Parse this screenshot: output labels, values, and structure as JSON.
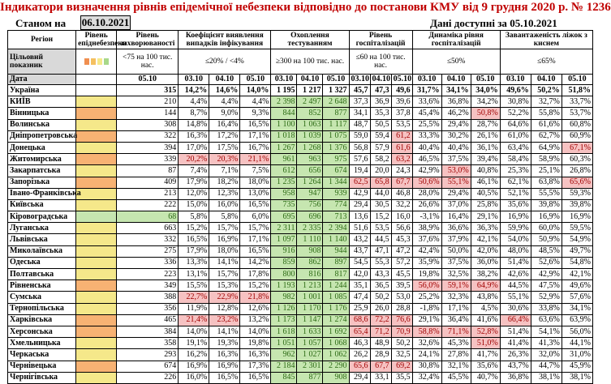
{
  "header": {
    "title": "Індикатори визначення рівнів епідемічної небезпеки відповідно до постанови КМУ від 9 грудня 2020 р. № 1236",
    "status_label": "Станом на",
    "status_date": "06.10.2021",
    "available_label": "Дані доступні за",
    "available_date": "05.10.2021"
  },
  "columns": {
    "region": "Регіон",
    "level": "Рівень епіднебезпеки",
    "morbidity": "Рівень захворюваності",
    "detection": "Коефіцієнт виявлення випадків інфікування",
    "testing": "Охоплення тестуванням",
    "hosp_level": "Рівень госпіталізацій",
    "hosp_dynamics": "Динаміка рівня госпіталізацій",
    "oxygen": "Завантаженість ліжок з киснем"
  },
  "targets": {
    "label": "Цільовий показник",
    "morbidity": "<75 на 100 тис. нас.",
    "detection": "≤20% / <4%",
    "testing": "≥300 на 100 тис. нас.",
    "hosp_level": "≤60 на 100 тис. нас.",
    "hosp_dynamics": "≤50%",
    "oxygen": "≤65%"
  },
  "dates_row": {
    "label": "Дата",
    "morbidity": "05.10",
    "d1": "03.10",
    "d2": "04.10",
    "d3": "05.10"
  },
  "level_colors": {
    "yellow": "#f5e88a",
    "orange": "#f7b273",
    "green": "#c6e6b0",
    "red": "#f6c2c2"
  },
  "legend_colors": [
    "#f08f50",
    "#f5c060",
    "#f5e88a",
    "#a8d88a"
  ],
  "rows": [
    {
      "region": "Україна",
      "level": "",
      "morb": "315",
      "det": [
        "14,2%",
        "14,6%",
        "14,0%"
      ],
      "test": [
        "1 195",
        "1 217",
        "1 327"
      ],
      "hosp": [
        "45,7",
        "47,3",
        "49,6"
      ],
      "dyn": [
        "31,7%",
        "34,1%",
        "34,0%"
      ],
      "oxy": [
        "49,6%",
        "50,2%",
        "51,8%"
      ],
      "hl": {}
    },
    {
      "region": "КИЇВ",
      "level": "yellow",
      "morb": "210",
      "det": [
        "4,4%",
        "4,4%",
        "4,4%"
      ],
      "test": [
        "2 398",
        "2 497",
        "2 648"
      ],
      "hosp": [
        "37,3",
        "36,9",
        "39,6"
      ],
      "dyn": [
        "33,6%",
        "36,8%",
        "34,2%"
      ],
      "oxy": [
        "30,8%",
        "32,7%",
        "33,7%"
      ],
      "hl": {
        "test": "g"
      }
    },
    {
      "region": "Вінницька",
      "level": "orange",
      "morb": "144",
      "det": [
        "8,7%",
        "9,0%",
        "9,3%"
      ],
      "test": [
        "844",
        "852",
        "877"
      ],
      "hosp": [
        "34,1",
        "35,3",
        "37,8"
      ],
      "dyn": [
        "45,4%",
        "46,2%",
        "50,8%"
      ],
      "oxy": [
        "52,2%",
        "55,8%",
        "53,7%"
      ],
      "hl": {
        "test": "g",
        "dyn2": "r"
      }
    },
    {
      "region": "Волинська",
      "level": "yellow",
      "morb": "308",
      "det": [
        "14,8%",
        "16,4%",
        "16,5%"
      ],
      "test": [
        "1 100",
        "1 063",
        "1 117"
      ],
      "hosp": [
        "48,7",
        "50,5",
        "53,5"
      ],
      "dyn": [
        "25,5%",
        "29,4%",
        "28,7%"
      ],
      "oxy": [
        "64,6%",
        "61,6%",
        "60,8%"
      ],
      "hl": {
        "test": "g"
      }
    },
    {
      "region": "Дніпропетровська",
      "level": "orange",
      "morb": "322",
      "det": [
        "16,3%",
        "17,2%",
        "17,1%"
      ],
      "test": [
        "1 018",
        "1 039",
        "1 075"
      ],
      "hosp": [
        "59,0",
        "59,4",
        "61,2"
      ],
      "dyn": [
        "33,3%",
        "30,2%",
        "26,1%"
      ],
      "oxy": [
        "61,0%",
        "62,7%",
        "60,9%"
      ],
      "hl": {
        "test": "g",
        "hosp2": "r"
      }
    },
    {
      "region": "Донецька",
      "level": "yellow",
      "morb": "394",
      "det": [
        "17,0%",
        "17,5%",
        "16,7%"
      ],
      "test": [
        "1 267",
        "1 268",
        "1 376"
      ],
      "hosp": [
        "56,8",
        "57,9",
        "61,6"
      ],
      "dyn": [
        "40,4%",
        "40,4%",
        "36,1%"
      ],
      "oxy": [
        "63,4%",
        "64,9%",
        "67,1%"
      ],
      "hl": {
        "test": "g",
        "hosp2": "r",
        "oxy2": "r"
      }
    },
    {
      "region": "Житомирська",
      "level": "orange",
      "morb": "339",
      "det": [
        "20,2%",
        "20,3%",
        "21,1%"
      ],
      "test": [
        "961",
        "963",
        "975"
      ],
      "hosp": [
        "57,6",
        "58,2",
        "63,2"
      ],
      "dyn": [
        "46,5%",
        "37,5%",
        "39,4%"
      ],
      "oxy": [
        "58,4%",
        "58,9%",
        "60,3%"
      ],
      "hl": {
        "det": "r",
        "test": "g",
        "hosp2": "r"
      }
    },
    {
      "region": "Закарпатська",
      "level": "yellow",
      "morb": "87",
      "det": [
        "7,4%",
        "7,1%",
        "7,5%"
      ],
      "test": [
        "612",
        "656",
        "674"
      ],
      "hosp": [
        "19,4",
        "20,0",
        "24,3"
      ],
      "dyn": [
        "42,9%",
        "53,0%",
        "40,8%"
      ],
      "oxy": [
        "25,3%",
        "25,1%",
        "26,8%"
      ],
      "hl": {
        "test": "g",
        "dyn1": "r"
      }
    },
    {
      "region": "Запорізька",
      "level": "orange",
      "morb": "409",
      "det": [
        "17,9%",
        "18,2%",
        "18,0%"
      ],
      "test": [
        "1 235",
        "1 264",
        "1 344"
      ],
      "hosp": [
        "62,5",
        "65,8",
        "67,7"
      ],
      "dyn": [
        "50,6%",
        "55,1%",
        "46,1%"
      ],
      "oxy": [
        "62,1%",
        "63,8%",
        "65,6%"
      ],
      "hl": {
        "test": "g",
        "hosp": "r",
        "dyn0": "r",
        "dyn1": "r",
        "oxy2": "r"
      }
    },
    {
      "region": "Івано-Франківська",
      "level": "yellow",
      "morb": "213",
      "det": [
        "12,0%",
        "12,3%",
        "13,0%"
      ],
      "test": [
        "958",
        "947",
        "939"
      ],
      "hosp": [
        "42,9",
        "44,0",
        "46,8"
      ],
      "dyn": [
        "28,0%",
        "29,4%",
        "40,5%"
      ],
      "oxy": [
        "52,1%",
        "55,5%",
        "59,3%"
      ],
      "hl": {
        "test": "g"
      }
    },
    {
      "region": "Київська",
      "level": "yellow",
      "morb": "222",
      "det": [
        "15,0%",
        "16,0%",
        "16,5%"
      ],
      "test": [
        "735",
        "756",
        "774"
      ],
      "hosp": [
        "29,4",
        "30,5",
        "32,2"
      ],
      "dyn": [
        "26,6%",
        "37,0%",
        "25,8%"
      ],
      "oxy": [
        "35,6%",
        "39,8%",
        "39,8%"
      ],
      "hl": {
        "test": "g"
      }
    },
    {
      "region": "Кіровоградська",
      "level": "green",
      "morb": "68",
      "det": [
        "5,8%",
        "5,8%",
        "6,0%"
      ],
      "test": [
        "695",
        "696",
        "713"
      ],
      "hosp": [
        "13,6",
        "15,2",
        "16,0"
      ],
      "dyn": [
        "-3,1%",
        "16,4%",
        "29,1%"
      ],
      "oxy": [
        "16,9%",
        "16,9%",
        "16,9%"
      ],
      "hl": {
        "test": "g",
        "morb": "g"
      }
    },
    {
      "region": "Луганська",
      "level": "yellow",
      "morb": "663",
      "det": [
        "15,2%",
        "15,7%",
        "15,7%"
      ],
      "test": [
        "2 311",
        "2 335",
        "2 394"
      ],
      "hosp": [
        "51,6",
        "53,5",
        "56,6"
      ],
      "dyn": [
        "38,9%",
        "36,6%",
        "36,3%"
      ],
      "oxy": [
        "59,9%",
        "60,0%",
        "59,5%"
      ],
      "hl": {
        "test": "g"
      }
    },
    {
      "region": "Львівська",
      "level": "yellow",
      "morb": "332",
      "det": [
        "16,5%",
        "16,9%",
        "17,1%"
      ],
      "test": [
        "1 097",
        "1 110",
        "1 140"
      ],
      "hosp": [
        "43,2",
        "44,5",
        "45,3"
      ],
      "dyn": [
        "37,6%",
        "37,9%",
        "42,1%"
      ],
      "oxy": [
        "54,0%",
        "50,9%",
        "54,9%"
      ],
      "hl": {
        "test": "g"
      }
    },
    {
      "region": "Миколаївська",
      "level": "yellow",
      "morb": "275",
      "det": [
        "17,9%",
        "18,0%",
        "16,5%"
      ],
      "test": [
        "916",
        "908",
        "944"
      ],
      "hosp": [
        "43,7",
        "47,1",
        "47,2"
      ],
      "dyn": [
        "42,4%",
        "50,0%",
        "42,0%"
      ],
      "oxy": [
        "48,0%",
        "48,5%",
        "49,7%"
      ],
      "hl": {
        "test": "g"
      }
    },
    {
      "region": "Одеська",
      "level": "yellow",
      "morb": "336",
      "det": [
        "13,3%",
        "14,1%",
        "14,2%"
      ],
      "test": [
        "859",
        "862",
        "897"
      ],
      "hosp": [
        "54,5",
        "55,3",
        "57,2"
      ],
      "dyn": [
        "35,9%",
        "37,5%",
        "36,0%"
      ],
      "oxy": [
        "51,4%",
        "52,6%",
        "54,8%"
      ],
      "hl": {
        "test": "g"
      }
    },
    {
      "region": "Полтавська",
      "level": "yellow",
      "morb": "223",
      "det": [
        "13,1%",
        "15,7%",
        "17,8%"
      ],
      "test": [
        "800",
        "816",
        "817"
      ],
      "hosp": [
        "42,0",
        "43,3",
        "45,5"
      ],
      "dyn": [
        "19,8%",
        "32,5%",
        "38,2%"
      ],
      "oxy": [
        "42,6%",
        "42,9%",
        "42,1%"
      ],
      "hl": {
        "test": "g"
      }
    },
    {
      "region": "Рівненська",
      "level": "orange",
      "morb": "349",
      "det": [
        "15,5%",
        "15,3%",
        "15,2%"
      ],
      "test": [
        "1 193",
        "1 213",
        "1 244"
      ],
      "hosp": [
        "35,1",
        "36,5",
        "39,5"
      ],
      "dyn": [
        "56,0%",
        "59,1%",
        "64,9%"
      ],
      "oxy": [
        "44,5%",
        "47,5%",
        "49,6%"
      ],
      "hl": {
        "test": "g",
        "dyn": "r"
      }
    },
    {
      "region": "Сумська",
      "level": "yellow",
      "morb": "388",
      "det": [
        "22,7%",
        "22,9%",
        "21,8%"
      ],
      "test": [
        "982",
        "1 001",
        "1 085"
      ],
      "hosp": [
        "47,4",
        "50,2",
        "53,0"
      ],
      "dyn": [
        "25,2%",
        "32,3%",
        "43,8%"
      ],
      "oxy": [
        "55,1%",
        "52,9%",
        "57,6%"
      ],
      "hl": {
        "det": "r",
        "test": "g"
      }
    },
    {
      "region": "Тернопільська",
      "level": "yellow",
      "morb": "356",
      "det": [
        "11,9%",
        "12,8%",
        "12,6%"
      ],
      "test": [
        "1 126",
        "1 170",
        "1 176"
      ],
      "hosp": [
        "25,9",
        "26,0",
        "28,8"
      ],
      "dyn": [
        "-1,8%",
        "17,1%",
        "4,5%"
      ],
      "oxy": [
        "30,6%",
        "33,8%",
        "34,1%"
      ],
      "hl": {
        "test": "g"
      }
    },
    {
      "region": "Харківська",
      "level": "orange",
      "morb": "465",
      "det": [
        "21,4%",
        "23,2%",
        "13,2%"
      ],
      "test": [
        "1 173",
        "1 147",
        "1 274"
      ],
      "hosp": [
        "68,6",
        "72,2",
        "76,6"
      ],
      "dyn": [
        "29,1%",
        "36,4%",
        "41,6%"
      ],
      "oxy": [
        "66,4%",
        "63,6%",
        "63,9%"
      ],
      "hl": {
        "det0": "r",
        "det1": "r",
        "test": "g",
        "hosp": "r",
        "oxy0": "r"
      }
    },
    {
      "region": "Херсонська",
      "level": "orange",
      "morb": "384",
      "det": [
        "14,0%",
        "14,1%",
        "14,0%"
      ],
      "test": [
        "1 618",
        "1 633",
        "1 692"
      ],
      "hosp": [
        "65,4",
        "71,2",
        "70,9"
      ],
      "dyn": [
        "58,8%",
        "71,1%",
        "52,8%"
      ],
      "oxy": [
        "51,4%",
        "54,1%",
        "56,0%"
      ],
      "hl": {
        "test": "g",
        "hosp": "r",
        "dyn": "r"
      }
    },
    {
      "region": "Хмельницька",
      "level": "yellow",
      "morb": "358",
      "det": [
        "19,1%",
        "19,3%",
        "19,8%"
      ],
      "test": [
        "1 051",
        "1 057",
        "1 068"
      ],
      "hosp": [
        "46,3",
        "48,9",
        "50,2"
      ],
      "dyn": [
        "32,6%",
        "45,3%",
        "51,0%"
      ],
      "oxy": [
        "41,4%",
        "41,3%",
        "44,1%"
      ],
      "hl": {
        "test": "g",
        "dyn2": "r"
      }
    },
    {
      "region": "Черкаська",
      "level": "yellow",
      "morb": "293",
      "det": [
        "16,2%",
        "16,3%",
        "16,3%"
      ],
      "test": [
        "962",
        "1 027",
        "1 062"
      ],
      "hosp": [
        "26,2",
        "28,9",
        "32,5"
      ],
      "dyn": [
        "24,1%",
        "27,8%",
        "41,7%"
      ],
      "oxy": [
        "26,3%",
        "32,0%",
        "31,0%"
      ],
      "hl": {
        "test": "g"
      }
    },
    {
      "region": "Чернівецька",
      "level": "orange",
      "morb": "674",
      "det": [
        "16,9%",
        "16,9%",
        "17,3%"
      ],
      "test": [
        "2 184",
        "2 301",
        "2 290"
      ],
      "hosp": [
        "65,6",
        "67,7",
        "69,2"
      ],
      "dyn": [
        "30,8%",
        "32,1%",
        "35,6%"
      ],
      "oxy": [
        "43,7%",
        "44,7%",
        "45,9%"
      ],
      "hl": {
        "test": "g",
        "hosp": "r"
      }
    },
    {
      "region": "Чернігівська",
      "level": "yellow",
      "morb": "226",
      "det": [
        "16,0%",
        "16,5%",
        "16,5%"
      ],
      "test": [
        "845",
        "877",
        "908"
      ],
      "hosp": [
        "29,4",
        "33,1",
        "35,5"
      ],
      "dyn": [
        "32,4%",
        "45,5%",
        "40,7%"
      ],
      "oxy": [
        "36,8%",
        "38,1%",
        "38,1%"
      ],
      "hl": {
        "test": "g"
      }
    }
  ]
}
